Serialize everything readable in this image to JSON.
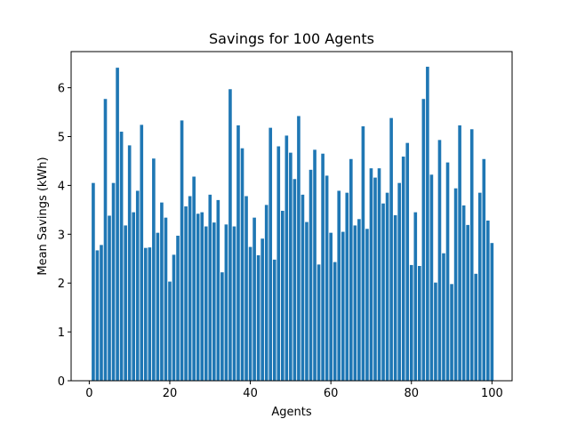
{
  "chart_data": {
    "type": "bar",
    "title": "Savings for 100 Agents",
    "xlabel": "Agents",
    "ylabel": "Mean Savings (kWh)",
    "xlim": [
      -4.5,
      105
    ],
    "ylim": [
      0,
      6.74
    ],
    "xticks": [
      0,
      20,
      40,
      60,
      80,
      100
    ],
    "yticks": [
      0,
      1,
      2,
      3,
      4,
      5,
      6
    ],
    "grid": false,
    "bar_color": "#1f77b4",
    "x": [
      1,
      2,
      3,
      4,
      5,
      6,
      7,
      8,
      9,
      10,
      11,
      12,
      13,
      14,
      15,
      16,
      17,
      18,
      19,
      20,
      21,
      22,
      23,
      24,
      25,
      26,
      27,
      28,
      29,
      30,
      31,
      32,
      33,
      34,
      35,
      36,
      37,
      38,
      39,
      40,
      41,
      42,
      43,
      44,
      45,
      46,
      47,
      48,
      49,
      50,
      51,
      52,
      53,
      54,
      55,
      56,
      57,
      58,
      59,
      60,
      61,
      62,
      63,
      64,
      65,
      66,
      67,
      68,
      69,
      70,
      71,
      72,
      73,
      74,
      75,
      76,
      77,
      78,
      79,
      80,
      81,
      82,
      83,
      84,
      85,
      86,
      87,
      88,
      89,
      90,
      91,
      92,
      93,
      94,
      95,
      96,
      97,
      98,
      99,
      100
    ],
    "values": [
      4.05,
      2.67,
      2.78,
      5.77,
      3.38,
      4.05,
      6.41,
      5.1,
      3.18,
      4.82,
      3.45,
      3.89,
      5.24,
      2.72,
      2.73,
      4.55,
      3.03,
      3.65,
      3.34,
      2.03,
      2.58,
      2.97,
      5.33,
      3.57,
      3.78,
      4.18,
      3.42,
      3.45,
      3.16,
      3.81,
      3.24,
      3.7,
      2.22,
      3.2,
      5.97,
      3.16,
      5.23,
      4.76,
      3.78,
      2.74,
      3.34,
      2.57,
      2.91,
      3.6,
      5.18,
      2.48,
      4.8,
      3.48,
      5.02,
      4.67,
      4.13,
      5.42,
      3.81,
      3.25,
      4.32,
      4.73,
      2.38,
      4.65,
      4.2,
      3.03,
      2.43,
      3.89,
      3.05,
      3.85,
      4.54,
      3.18,
      3.31,
      5.21,
      3.11,
      4.35,
      4.16,
      4.35,
      3.63,
      3.85,
      5.38,
      3.39,
      4.05,
      4.59,
      4.87,
      2.37,
      3.45,
      2.35,
      5.77,
      6.43,
      4.22,
      2.01,
      4.93,
      2.61,
      4.47,
      1.98,
      3.94,
      5.23,
      3.59,
      3.19,
      5.15,
      2.19,
      3.85,
      4.54,
      3.28,
      2.82
    ]
  }
}
